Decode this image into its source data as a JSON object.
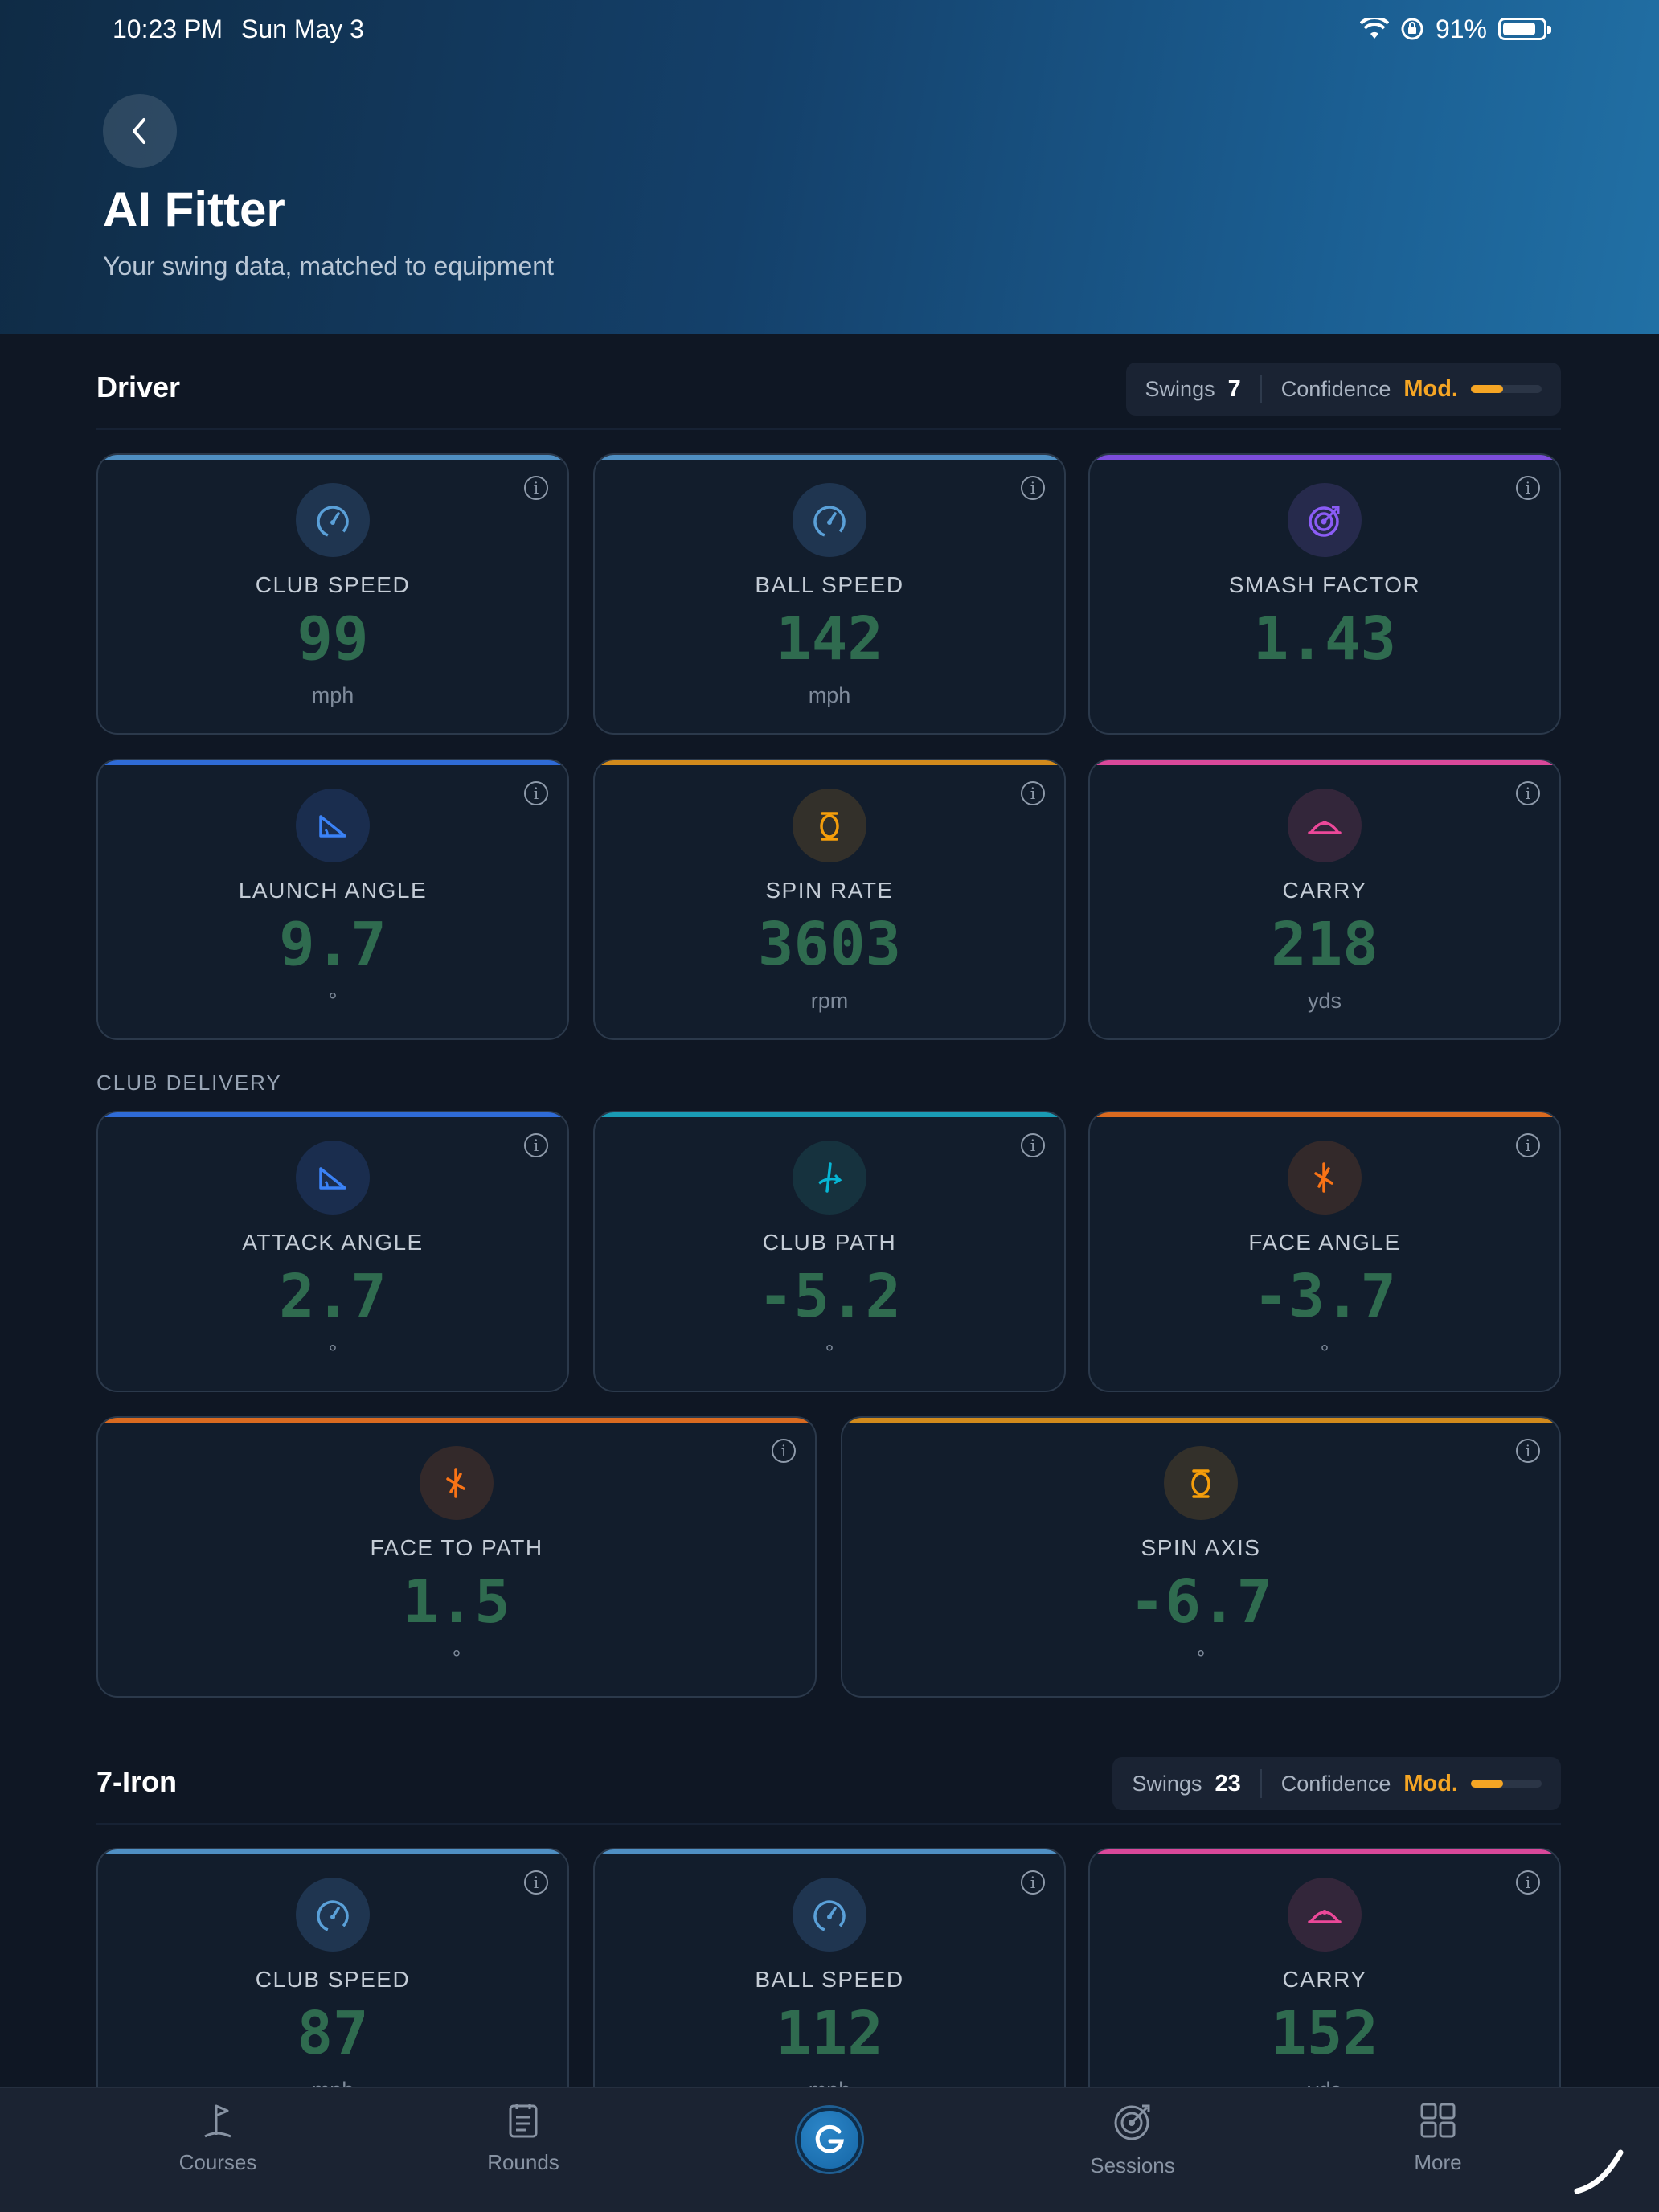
{
  "status_bar": {
    "time": "10:23 PM",
    "date": "Sun May 3",
    "battery": "91%"
  },
  "header": {
    "title": "AI Fitter",
    "subtitle": "Your swing data, matched to equipment"
  },
  "colors": {
    "speed": "#5aa0d8",
    "smash": "#8b5cf6",
    "launch": "#3b82f6",
    "spin": "#f59e0b",
    "carry": "#ec4899",
    "path": "#06b6d4",
    "face": "#f97316",
    "value": "#2f6b4f",
    "confidence": "#f5a524"
  },
  "driver": {
    "title": "Driver",
    "swings_label": "Swings",
    "swings": "7",
    "confidence_label": "Confidence",
    "confidence": "Mod.",
    "confidence_level": 0.45,
    "metrics": [
      {
        "label": "CLUB SPEED",
        "value": "99",
        "unit": "mph",
        "icon": "speedometer-icon"
      },
      {
        "label": "BALL SPEED",
        "value": "142",
        "unit": "mph",
        "icon": "speedometer-icon"
      },
      {
        "label": "SMASH FACTOR",
        "value": "1.43",
        "unit": "",
        "icon": "target-icon"
      },
      {
        "label": "LAUNCH ANGLE",
        "value": "9.7",
        "unit": "°",
        "icon": "angle-icon"
      },
      {
        "label": "SPIN RATE",
        "value": "3603",
        "unit": "rpm",
        "icon": "spin-icon"
      },
      {
        "label": "CARRY",
        "value": "218",
        "unit": "yds",
        "icon": "arc-icon"
      }
    ],
    "delivery_label": "CLUB DELIVERY",
    "delivery": [
      {
        "label": "ATTACK ANGLE",
        "value": "2.7",
        "unit": "°",
        "icon": "angle-icon"
      },
      {
        "label": "CLUB PATH",
        "value": "-5.2",
        "unit": "°",
        "icon": "path-icon"
      },
      {
        "label": "FACE ANGLE",
        "value": "-3.7",
        "unit": "°",
        "icon": "face-icon"
      },
      {
        "label": "FACE TO PATH",
        "value": "1.5",
        "unit": "°",
        "icon": "face-icon"
      },
      {
        "label": "SPIN AXIS",
        "value": "-6.7",
        "unit": "°",
        "icon": "spin-icon"
      }
    ]
  },
  "iron": {
    "title": "7-Iron",
    "swings_label": "Swings",
    "swings": "23",
    "confidence_label": "Confidence",
    "confidence": "Mod.",
    "confidence_level": 0.45,
    "metrics": [
      {
        "label": "CLUB SPEED",
        "value": "87",
        "unit": "mph",
        "icon": "speedometer-icon"
      },
      {
        "label": "BALL SPEED",
        "value": "112",
        "unit": "mph",
        "icon": "speedometer-icon"
      },
      {
        "label": "CARRY",
        "value": "152",
        "unit": "yds",
        "icon": "arc-icon"
      }
    ]
  },
  "nav": [
    {
      "label": "Courses",
      "icon": "flag-icon"
    },
    {
      "label": "Rounds",
      "icon": "scorecard-icon"
    },
    {
      "label": "",
      "icon": "app-logo-icon"
    },
    {
      "label": "Sessions",
      "icon": "target-icon"
    },
    {
      "label": "More",
      "icon": "grid-icon"
    }
  ]
}
